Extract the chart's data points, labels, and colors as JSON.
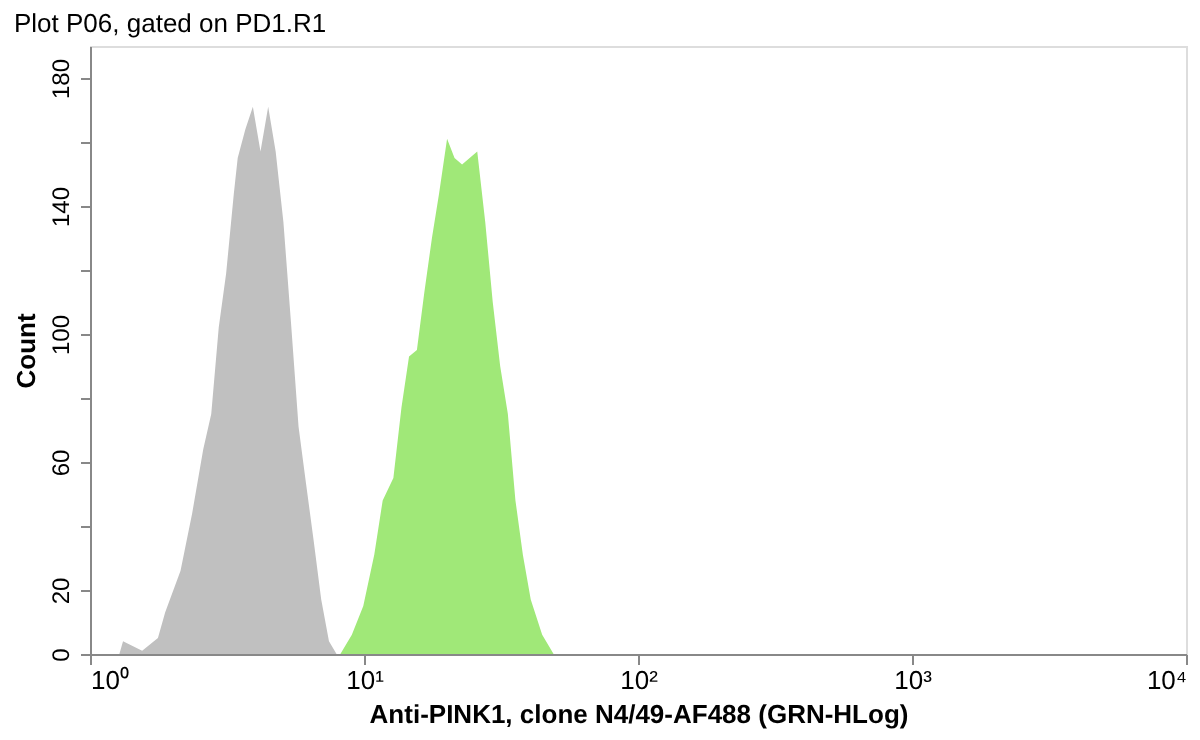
{
  "chart_data": {
    "type": "area",
    "title": "Plot P06, gated on PD1.R1",
    "xlabel": "Anti-PINK1, clone N4/49-AF488 (GRN-HLog)",
    "ylabel": "Count",
    "log": "x",
    "grid": false,
    "xlim": [
      1,
      10000
    ],
    "xticks": [
      {
        "value": 1,
        "label": "10⁰"
      },
      {
        "value": 10,
        "label": "10¹"
      },
      {
        "value": 100,
        "label": "10²"
      },
      {
        "value": 1000,
        "label": "10³"
      },
      {
        "value": 10000,
        "label": "10⁴"
      }
    ],
    "ylim": [
      0,
      190
    ],
    "yticks": [
      0,
      20,
      {
        "value": 40,
        "label": null
      },
      60,
      {
        "value": 80,
        "label": null
      },
      100,
      {
        "value": 120,
        "label": null
      },
      140,
      {
        "value": 160,
        "label": null
      },
      180
    ],
    "series": [
      {
        "color": "#c0c0c0",
        "x": [
          1.28,
          1.32,
          1.55,
          1.77,
          1.88,
          2.14,
          2.36,
          2.59,
          2.77,
          2.95,
          3.14,
          3.35,
          3.46,
          3.69,
          3.93,
          4.19,
          4.47,
          4.76,
          5.08,
          5.41,
          5.77,
          6.15,
          6.56,
          6.98,
          7.45,
          7.94
        ],
        "values": [
          0,
          4,
          1,
          5,
          13,
          26,
          44,
          64,
          75,
          102,
          119,
          144,
          155,
          164,
          171,
          157,
          171,
          157,
          135,
          104,
          71,
          53,
          35,
          17,
          4,
          0
        ]
      },
      {
        "color": "#a0e878",
        "x": [
          8.2,
          9.03,
          9.94,
          10.9,
          11.7,
          12.8,
          13.7,
          14.6,
          15.6,
          16.6,
          17.7,
          18.8,
          20.1,
          21.4,
          22.8,
          24.3,
          25.9,
          27.7,
          29.5,
          31.4,
          33.5,
          35.7,
          38.0,
          40.6,
          44.7,
          49.2
        ],
        "values": [
          0,
          6,
          15,
          31,
          48,
          55,
          77,
          93,
          95,
          113,
          130,
          144,
          161,
          155,
          153,
          155,
          157,
          135,
          110,
          90,
          75,
          48,
          31,
          17,
          6,
          0
        ]
      }
    ]
  }
}
